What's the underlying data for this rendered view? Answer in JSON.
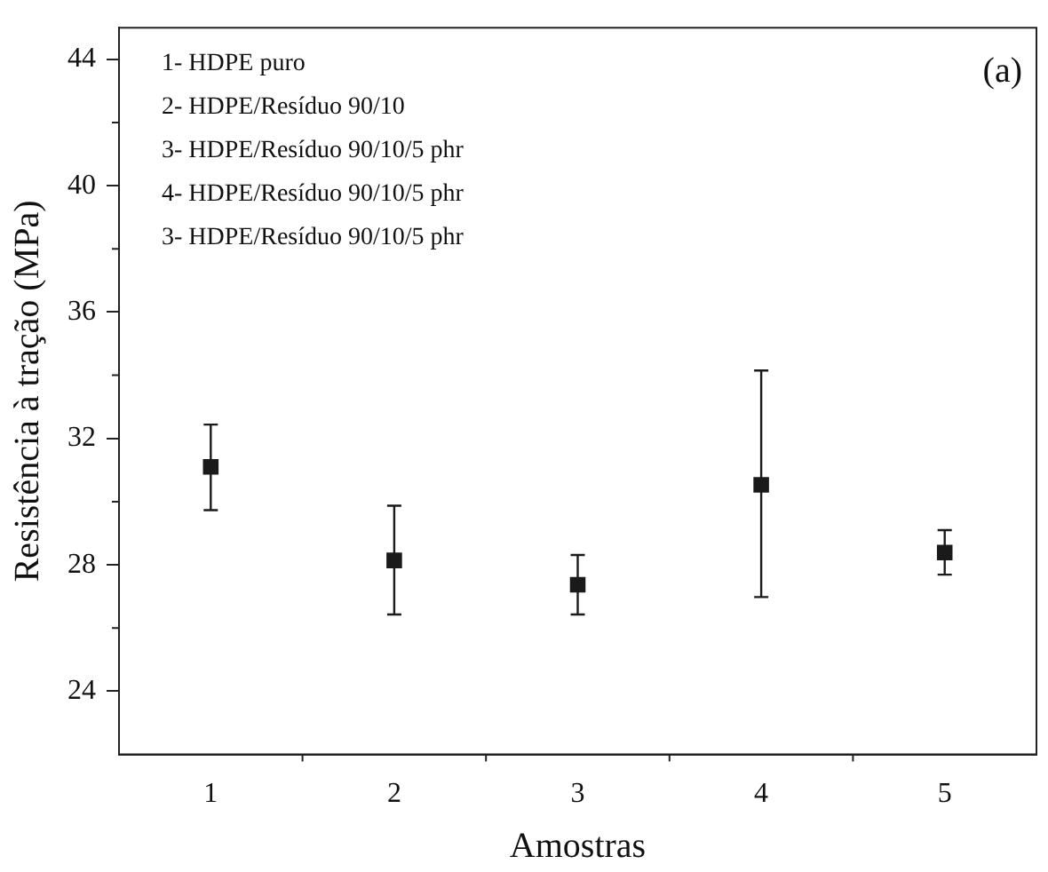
{
  "chart_data": {
    "type": "scatter",
    "title": "(a)",
    "xlabel": "Amostras",
    "ylabel": "Resistência à tração (MPa)",
    "annotations": [
      "1- HDPE puro",
      "2- HDPE/Resíduo 90/10",
      "3- HDPE/Resíduo 90/10/5 phr",
      "4- HDPE/Resíduo 90/10/5 phr",
      "3- HDPE/Resíduo 90/10/5 phr"
    ],
    "x": [
      1,
      2,
      3,
      4,
      5
    ],
    "series": [
      {
        "color": "#1a1a1a",
        "values": [
          31.1,
          28.14,
          27.37,
          30.53,
          28.39
        ],
        "errors": [
          [
            29.73,
            32.44
          ],
          [
            26.43,
            29.87
          ],
          [
            26.43,
            28.31
          ],
          [
            26.98,
            34.15
          ],
          [
            27.69,
            29.1
          ]
        ]
      }
    ],
    "marker": "square",
    "grid": false,
    "legend": false,
    "xlim": [
      0.5,
      5.5
    ],
    "xticks": [
      1,
      2,
      3,
      4,
      5
    ],
    "ylim": [
      22,
      45
    ],
    "yticks": [
      24,
      28,
      32,
      36,
      40,
      44
    ]
  }
}
